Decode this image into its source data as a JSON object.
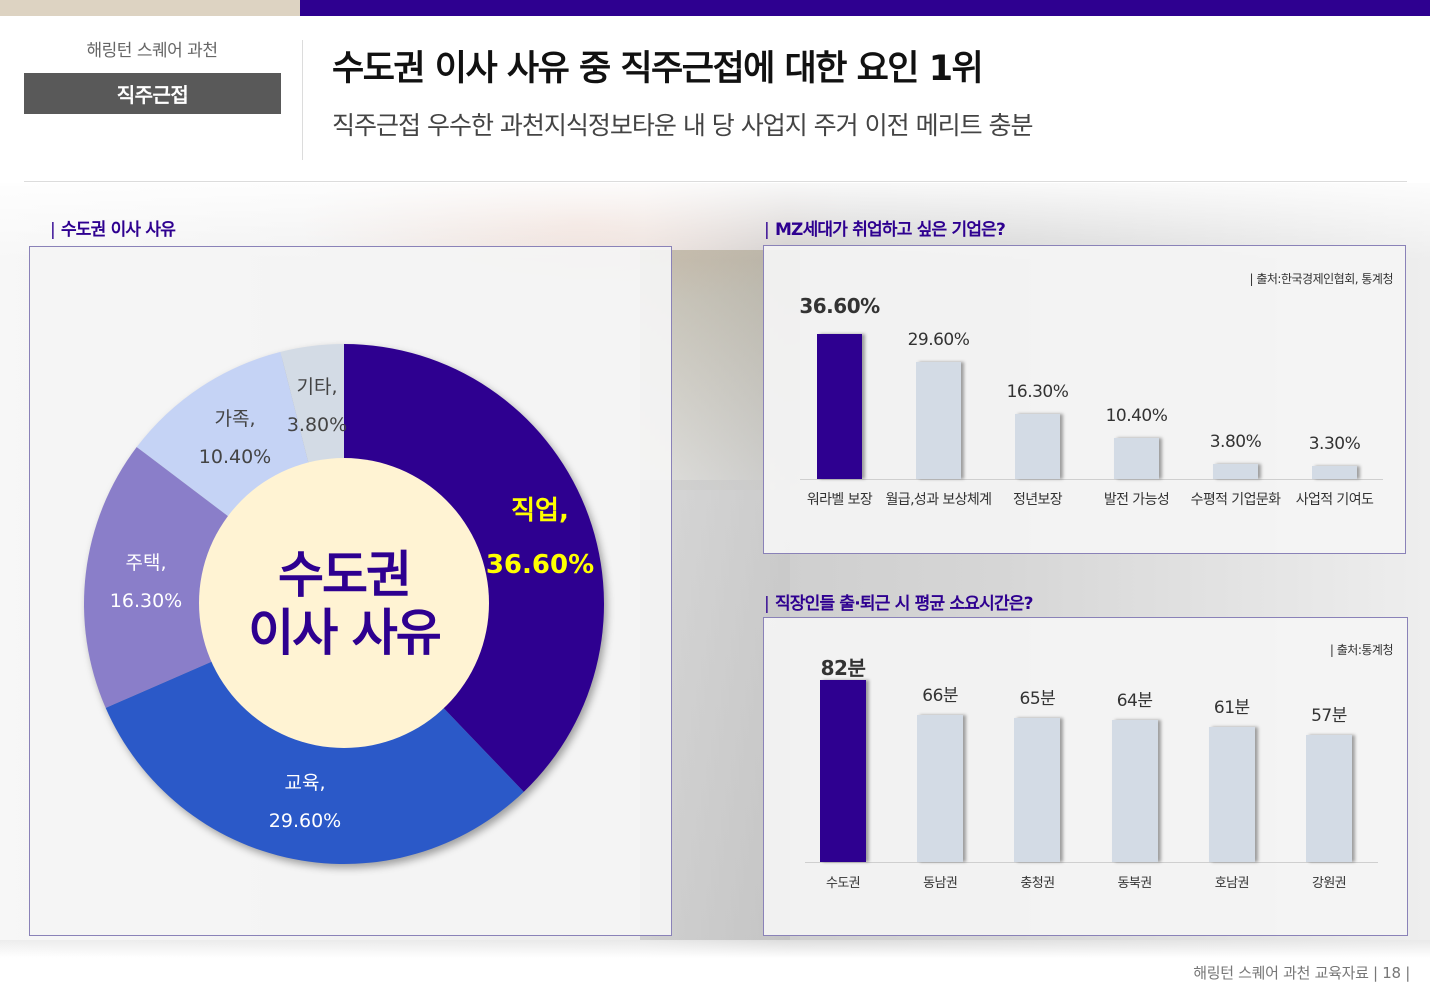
{
  "header": {
    "brand": "해링턴 스퀘어 과천",
    "section_tag": "직주근접",
    "title": "수도권 이사 사유 중 직주근접에 대한 요인 1위",
    "subtitle": "직주근접 우수한 과천지식정보타운 내 당 사업지 주거 이전 메리트 충분"
  },
  "colors": {
    "brand_purple": "#2e0090",
    "top_left_bar": "#ddd3c2",
    "section_tag_bg": "#595959",
    "highlight_yellow": "#ffff00",
    "bar_gray": "#d3dbe5",
    "donut_center": "#fff3d3"
  },
  "panels": {
    "moving": {
      "label": "수도권 이사 사유",
      "center_line1": "수도권",
      "center_line2": "이사 사유"
    },
    "mz": {
      "label": "MZ세대가 취업하고 싶은 기업은?",
      "source": "| 출처:한국경제인협회, 통계청"
    },
    "commute": {
      "label": "직장인들 출·퇴근 시 평균 소요시간은?",
      "source": "| 출처:통계청"
    }
  },
  "chart_data": [
    {
      "type": "pie",
      "title": "수도권 이사 사유",
      "center_text": "수도권 이사 사유",
      "categories": [
        "직업",
        "교육",
        "주택",
        "가족",
        "기타"
      ],
      "values": [
        36.6,
        29.6,
        16.3,
        10.4,
        3.8
      ],
      "labels": [
        {
          "name": "직업,",
          "value": "36.60%",
          "color": "#2e0090",
          "text_color": "#ffff00"
        },
        {
          "name": "교육,",
          "value": "29.60%",
          "color": "#2b59c8",
          "text_color": "#ffffff"
        },
        {
          "name": "주택,",
          "value": "16.30%",
          "color": "#8a7ec9",
          "text_color": "#ffffff"
        },
        {
          "name": "가족,",
          "value": "10.40%",
          "color": "#c5d3f5",
          "text_color": "#444444"
        },
        {
          "name": "기타,",
          "value": "3.80%",
          "color": "#d3dbe5",
          "text_color": "#444444"
        }
      ]
    },
    {
      "type": "bar",
      "title": "MZ세대가 취업하고 싶은 기업은?",
      "categories": [
        "워라벨 보장",
        "월급,성과 보상체계",
        "정년보장",
        "발전 가능성",
        "수평적 기업문화",
        "사업적 기여도"
      ],
      "values": [
        36.6,
        29.6,
        16.3,
        10.4,
        3.8,
        3.3
      ],
      "value_labels": [
        "36.60%",
        "29.60%",
        "16.30%",
        "10.40%",
        "3.80%",
        "3.30%"
      ],
      "unit": "%",
      "xlabel": "",
      "ylabel": "",
      "grid": false,
      "highlight_index": 0,
      "source": "출처:한국경제인협회, 통계청"
    },
    {
      "type": "bar",
      "title": "직장인들 출·퇴근 시 평균 소요시간은?",
      "categories": [
        "수도권",
        "동남권",
        "충청권",
        "동북권",
        "호남권",
        "강원권"
      ],
      "values": [
        82,
        66,
        65,
        64,
        61,
        57
      ],
      "value_labels": [
        "82분",
        "66분",
        "65분",
        "64분",
        "61분",
        "57분"
      ],
      "unit": "분",
      "xlabel": "",
      "ylabel": "",
      "grid": false,
      "highlight_index": 0,
      "source": "출처:통계청"
    }
  ],
  "footer": {
    "text": "해링턴 스퀘어 과천 교육자료 | 18 |"
  }
}
